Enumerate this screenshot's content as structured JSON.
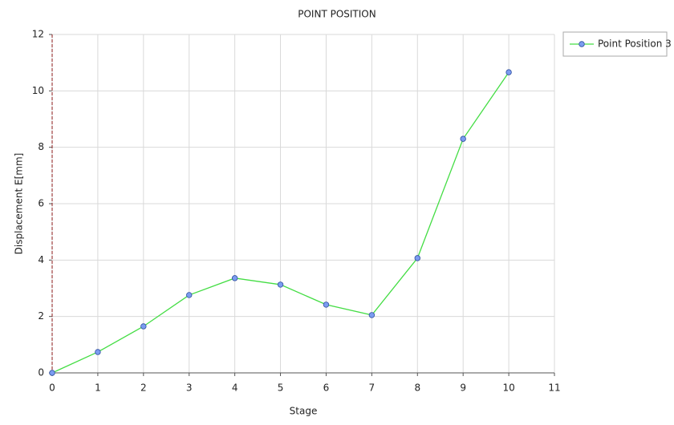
{
  "chart_data": {
    "type": "line",
    "title": "POINT POSITION",
    "x_label": "Stage",
    "y_label": "Displacement E[mm]",
    "x": [
      0,
      1,
      2,
      3,
      4,
      5,
      6,
      7,
      8,
      9,
      10
    ],
    "series": [
      {
        "name": "Point Position 3",
        "color": "#44dd44",
        "marker_color": "#7b9cf0",
        "values": [
          0,
          0.74,
          1.65,
          2.76,
          3.36,
          3.13,
          2.42,
          2.05,
          4.07,
          8.3,
          10.66
        ]
      }
    ],
    "xlim": [
      0,
      11
    ],
    "xticks": [
      0,
      1,
      2,
      3,
      4,
      5,
      6,
      7,
      8,
      9,
      10,
      11
    ],
    "ylim": [
      0,
      12
    ],
    "yticks": [
      0,
      2,
      4,
      6,
      8,
      10,
      12
    ],
    "grid": true,
    "legend": "right"
  }
}
